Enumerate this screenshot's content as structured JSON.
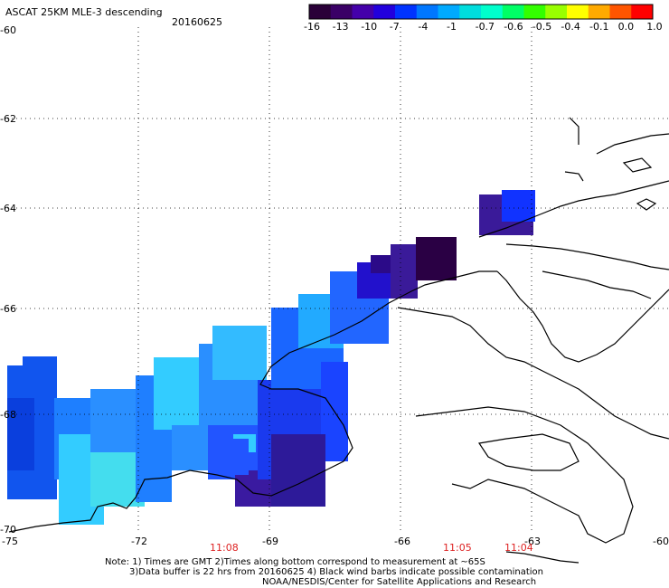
{
  "header": {
    "title": "ASCAT 25KM MLE-3 descending",
    "date": "20160625"
  },
  "colorbar": {
    "colors": [
      "#2a0038",
      "#3a0066",
      "#4400aa",
      "#2200dd",
      "#0033ff",
      "#0077ff",
      "#00aaff",
      "#00dddd",
      "#00ffcc",
      "#00ff66",
      "#33ff00",
      "#99ff00",
      "#ffff00",
      "#ffaa00",
      "#ff5500",
      "#ff0000"
    ],
    "labels": [
      "-16",
      "-13",
      "-10",
      "-7",
      "-4",
      "-1",
      "-0.7",
      "-0.6",
      "-0.5",
      "-0.4",
      "-0.1",
      "0.0",
      "1.0"
    ]
  },
  "axes": {
    "lat_labels": [
      "-60",
      "-62",
      "-64",
      "-66",
      "-68",
      "-70"
    ],
    "lon_labels": [
      "-75",
      "-72",
      "-69",
      "-66",
      "-63",
      "-60"
    ]
  },
  "times": [
    "11:08",
    "11:05",
    "11:04"
  ],
  "notes": [
    "Note: 1) Times are GMT 2)Times along bottom correspond to measurement at ~65S",
    "3)Data buffer is 22 hrs from 20160625 4) Black wind barbs indicate possible contamination",
    "NOAA/NESDIS/Center for Satellite Applications and Research"
  ]
}
